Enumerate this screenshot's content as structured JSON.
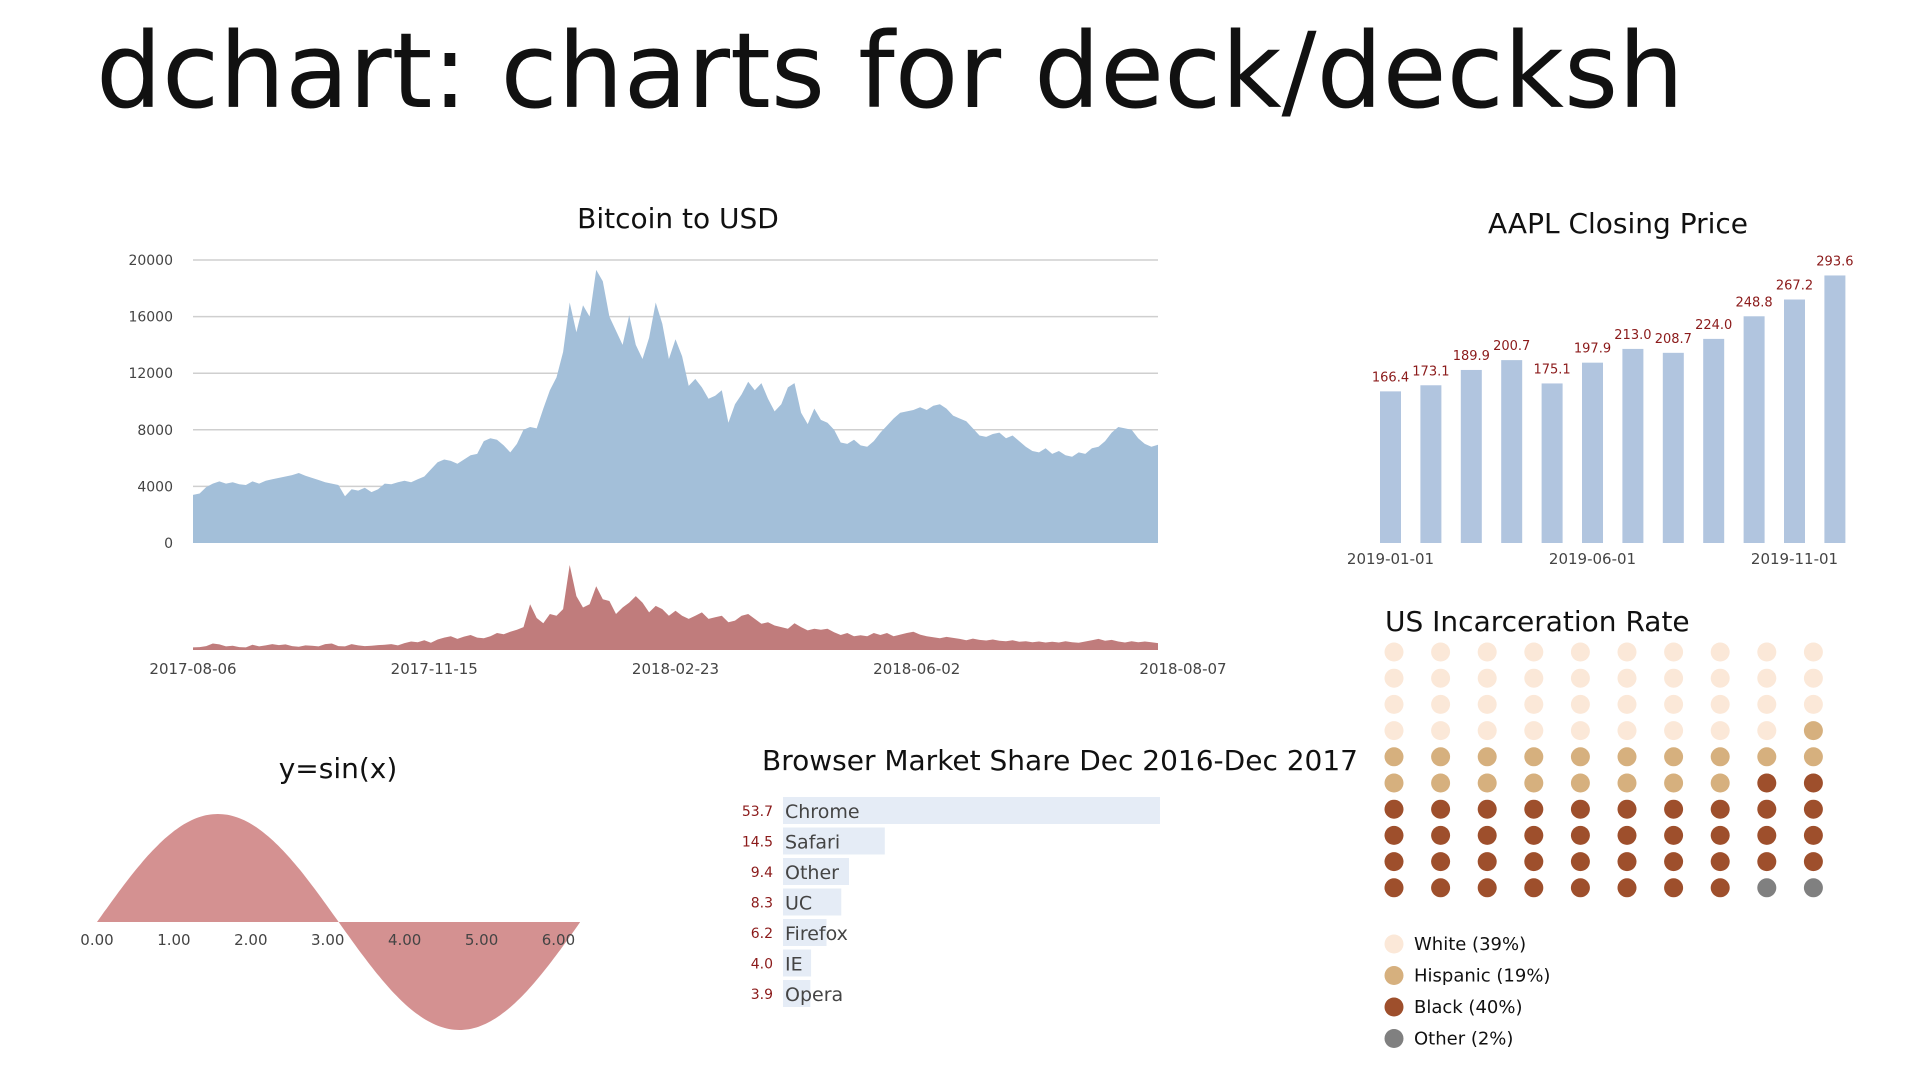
{
  "page": {
    "title": "dchart: charts for deck/decksh"
  },
  "colors": {
    "bitcoin_area": "#a3bfd9",
    "volume_area": "#c07c7c",
    "aapl_bar": "#b1c5df",
    "aapl_label": "#8b1a1a",
    "sine_area": "#d49191",
    "browser_bar": "#e5ecf6",
    "browser_value": "#8b1a1a",
    "grid": "#cfcfcf",
    "axis_text": "#444444",
    "white": "#fbe8d8",
    "hispanic": "#d6b07e",
    "black": "#9e4f2c",
    "other": "#808080"
  },
  "chart_data": [
    {
      "id": "bitcoin",
      "type": "area",
      "title": "Bitcoin to USD",
      "ylim": [
        0,
        20000
      ],
      "yticks": [
        "0",
        "4000",
        "8000",
        "12000",
        "16000",
        "20000"
      ],
      "xticks": [
        "2017-08-06",
        "2017-11-15",
        "2018-02-23",
        "2018-06-02",
        "2018-08-07"
      ],
      "grid": true,
      "series": [
        {
          "values": [
            3400,
            3500,
            3950,
            4200,
            4350,
            4200,
            4300,
            4150,
            4100,
            4350,
            4200,
            4400,
            4500,
            4600,
            4700,
            4800,
            4950,
            4750,
            4600,
            4450,
            4300,
            4200,
            4100,
            3300,
            3800,
            3700,
            3900,
            3600,
            3800,
            4200,
            4150,
            4300,
            4400,
            4300,
            4500,
            4700,
            5200,
            5700,
            5900,
            5800,
            5600,
            5900,
            6200,
            6300,
            7200,
            7400,
            7300,
            6900,
            6400,
            7000,
            8000,
            8200,
            8100,
            9500,
            10800,
            11700,
            13500,
            17000,
            14900,
            16800,
            16000,
            19300,
            18500,
            16000,
            15000,
            14000,
            16100,
            14000,
            13000,
            14500,
            17000,
            15500,
            13000,
            14400,
            13200,
            11100,
            11600,
            11000,
            10200,
            10400,
            10800,
            8500,
            9800,
            10500,
            11400,
            10800,
            11300,
            10200,
            9300,
            9800,
            11000,
            11300,
            9200,
            8400,
            9500,
            8700,
            8500,
            8000,
            7100,
            7000,
            7300,
            6900,
            6800,
            7200,
            7800,
            8300,
            8800,
            9200,
            9300,
            9400,
            9600,
            9400,
            9700,
            9800,
            9500,
            9000,
            8800,
            8600,
            8100,
            7600,
            7500,
            7700,
            7800,
            7400,
            7600,
            7200,
            6800,
            6500,
            6400,
            6700,
            6300,
            6500,
            6200,
            6100,
            6400,
            6300,
            6700,
            6800,
            7200,
            7800,
            8200,
            8100,
            8000,
            7400,
            7000,
            6800,
            6950
          ]
        }
      ],
      "volume": {
        "values": [
          80,
          90,
          120,
          200,
          170,
          110,
          130,
          90,
          80,
          160,
          110,
          140,
          180,
          150,
          170,
          120,
          100,
          140,
          130,
          110,
          180,
          200,
          120,
          110,
          180,
          140,
          120,
          130,
          150,
          160,
          180,
          140,
          210,
          260,
          240,
          300,
          220,
          320,
          380,
          420,
          340,
          410,
          460,
          380,
          360,
          420,
          520,
          480,
          560,
          620,
          700,
          1400,
          980,
          820,
          1100,
          1050,
          1250,
          2600,
          1650,
          1300,
          1400,
          1950,
          1550,
          1500,
          1100,
          1300,
          1450,
          1650,
          1450,
          1150,
          1350,
          1250,
          1050,
          1200,
          1050,
          950,
          1050,
          1150,
          950,
          1000,
          1050,
          850,
          900,
          1050,
          1100,
          950,
          800,
          850,
          750,
          700,
          650,
          820,
          700,
          600,
          650,
          620,
          650,
          540,
          460,
          520,
          420,
          450,
          420,
          520,
          460,
          520,
          420,
          470,
          520,
          560,
          470,
          420,
          390,
          360,
          400,
          370,
          340,
          300,
          350,
          310,
          290,
          320,
          280,
          270,
          300,
          250,
          270,
          240,
          260,
          230,
          250,
          230,
          270,
          240,
          220,
          260,
          300,
          340,
          280,
          310,
          260,
          230,
          270,
          240,
          260,
          240,
          210
        ]
      }
    },
    {
      "id": "aapl",
      "type": "bar",
      "title": "AAPL Closing Price",
      "xticks": [
        "2019-01-01",
        "2019-06-01",
        "2019-11-01"
      ],
      "ylim": [
        0,
        300
      ],
      "values": [
        166.4,
        173.1,
        189.9,
        200.7,
        175.1,
        197.9,
        213.0,
        208.7,
        224.0,
        248.8,
        267.2,
        293.6
      ],
      "value_labels": [
        "166.4",
        "173.1",
        "189.9",
        "200.7",
        "175.1",
        "197.9",
        "213.0",
        "208.7",
        "224.0",
        "248.8",
        "267.2",
        "293.6"
      ]
    },
    {
      "id": "sine",
      "type": "area",
      "title": "y=sin(x)",
      "xlim": [
        0,
        6.28
      ],
      "ylim": [
        -1,
        1
      ],
      "xticks": [
        "0.00",
        "1.00",
        "2.00",
        "3.00",
        "4.00",
        "5.00",
        "6.00"
      ]
    },
    {
      "id": "browser",
      "type": "bar",
      "orientation": "horizontal",
      "title": "Browser Market Share Dec 2016-Dec 2017",
      "categories": [
        "Chrome",
        "Safari",
        "Other",
        "UC",
        "Firefox",
        "IE",
        "Opera"
      ],
      "values": [
        53.7,
        14.5,
        9.4,
        8.3,
        6.2,
        4.0,
        3.9
      ],
      "value_labels": [
        "53.7",
        "14.5",
        "9.4",
        "8.3",
        "6.2",
        "4.0",
        "3.9"
      ]
    },
    {
      "id": "incarceration",
      "type": "dot",
      "title": "US Incarceration Rate",
      "grid_columns": 10,
      "grid_rows": 10,
      "categories": [
        {
          "name": "White (39%)",
          "count": 39
        },
        {
          "name": "Hispanic (19%)",
          "count": 19
        },
        {
          "name": "Black (40%)",
          "count": 40
        },
        {
          "name": "Other (2%)",
          "count": 2
        }
      ]
    }
  ]
}
